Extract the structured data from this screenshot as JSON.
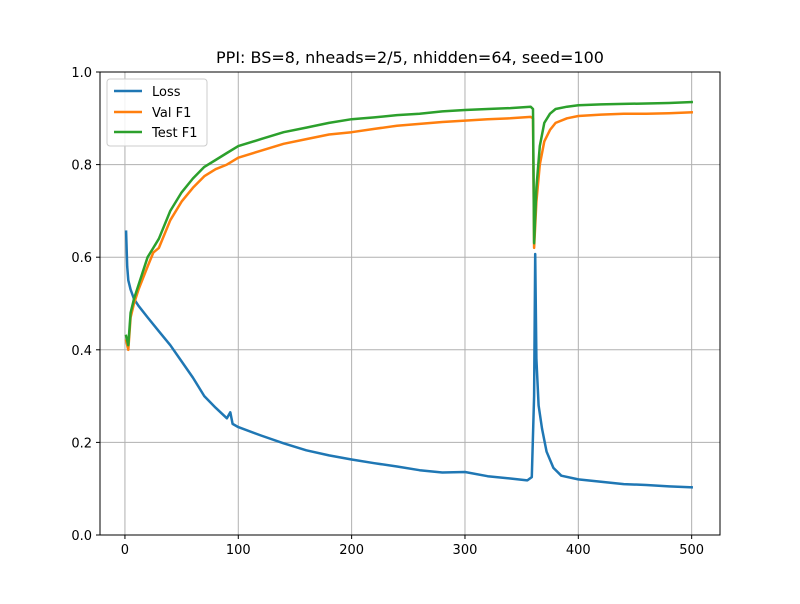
{
  "chart_data": {
    "type": "line",
    "title": "PPI: BS=8, nheads=2/5, nhidden=64, seed=100",
    "xlabel": "",
    "ylabel": "",
    "xlim": [
      -22,
      525
    ],
    "ylim": [
      0,
      1
    ],
    "xticks": [
      0,
      100,
      200,
      300,
      400,
      500
    ],
    "yticks": [
      0.0,
      0.2,
      0.4,
      0.6,
      0.8,
      1.0
    ],
    "xtick_labels": [
      "0",
      "100",
      "200",
      "300",
      "400",
      "500"
    ],
    "ytick_labels": [
      "0.0",
      "0.2",
      "0.4",
      "0.6",
      "0.8",
      "1.0"
    ],
    "grid": true,
    "legend_position": "top-left",
    "series": [
      {
        "name": "Loss",
        "color": "#1f77b4",
        "points": [
          [
            1,
            0.655
          ],
          [
            2,
            0.58
          ],
          [
            3,
            0.55
          ],
          [
            5,
            0.53
          ],
          [
            8,
            0.51
          ],
          [
            12,
            0.495
          ],
          [
            20,
            0.47
          ],
          [
            30,
            0.44
          ],
          [
            40,
            0.41
          ],
          [
            50,
            0.375
          ],
          [
            60,
            0.34
          ],
          [
            70,
            0.3
          ],
          [
            80,
            0.275
          ],
          [
            90,
            0.252
          ],
          [
            93,
            0.265
          ],
          [
            95,
            0.24
          ],
          [
            100,
            0.233
          ],
          [
            120,
            0.215
          ],
          [
            140,
            0.198
          ],
          [
            160,
            0.183
          ],
          [
            180,
            0.172
          ],
          [
            200,
            0.163
          ],
          [
            220,
            0.155
          ],
          [
            240,
            0.148
          ],
          [
            260,
            0.14
          ],
          [
            280,
            0.135
          ],
          [
            300,
            0.136
          ],
          [
            320,
            0.127
          ],
          [
            340,
            0.122
          ],
          [
            355,
            0.118
          ],
          [
            359,
            0.125
          ],
          [
            361,
            0.3
          ],
          [
            362,
            0.607
          ],
          [
            363,
            0.38
          ],
          [
            365,
            0.28
          ],
          [
            368,
            0.23
          ],
          [
            372,
            0.18
          ],
          [
            378,
            0.145
          ],
          [
            385,
            0.128
          ],
          [
            400,
            0.12
          ],
          [
            420,
            0.115
          ],
          [
            440,
            0.11
          ],
          [
            460,
            0.108
          ],
          [
            480,
            0.105
          ],
          [
            500,
            0.103
          ]
        ]
      },
      {
        "name": "Val F1",
        "color": "#ff7f0e",
        "points": [
          [
            1,
            0.42
          ],
          [
            3,
            0.4
          ],
          [
            5,
            0.47
          ],
          [
            8,
            0.5
          ],
          [
            12,
            0.53
          ],
          [
            20,
            0.58
          ],
          [
            25,
            0.61
          ],
          [
            30,
            0.62
          ],
          [
            40,
            0.68
          ],
          [
            50,
            0.72
          ],
          [
            60,
            0.75
          ],
          [
            70,
            0.775
          ],
          [
            80,
            0.79
          ],
          [
            90,
            0.8
          ],
          [
            100,
            0.815
          ],
          [
            120,
            0.83
          ],
          [
            140,
            0.845
          ],
          [
            160,
            0.855
          ],
          [
            180,
            0.865
          ],
          [
            200,
            0.87
          ],
          [
            220,
            0.877
          ],
          [
            240,
            0.884
          ],
          [
            260,
            0.888
          ],
          [
            280,
            0.892
          ],
          [
            300,
            0.895
          ],
          [
            320,
            0.898
          ],
          [
            340,
            0.9
          ],
          [
            358,
            0.903
          ],
          [
            360,
            0.9
          ],
          [
            361,
            0.62
          ],
          [
            363,
            0.72
          ],
          [
            366,
            0.8
          ],
          [
            370,
            0.85
          ],
          [
            375,
            0.875
          ],
          [
            380,
            0.89
          ],
          [
            390,
            0.9
          ],
          [
            400,
            0.905
          ],
          [
            420,
            0.908
          ],
          [
            440,
            0.91
          ],
          [
            460,
            0.91
          ],
          [
            480,
            0.911
          ],
          [
            500,
            0.913
          ]
        ]
      },
      {
        "name": "Test F1",
        "color": "#2ca02c",
        "points": [
          [
            1,
            0.43
          ],
          [
            3,
            0.41
          ],
          [
            5,
            0.48
          ],
          [
            8,
            0.51
          ],
          [
            12,
            0.54
          ],
          [
            20,
            0.6
          ],
          [
            25,
            0.62
          ],
          [
            30,
            0.64
          ],
          [
            40,
            0.7
          ],
          [
            50,
            0.74
          ],
          [
            60,
            0.77
          ],
          [
            70,
            0.795
          ],
          [
            80,
            0.81
          ],
          [
            90,
            0.825
          ],
          [
            100,
            0.84
          ],
          [
            120,
            0.855
          ],
          [
            140,
            0.87
          ],
          [
            160,
            0.88
          ],
          [
            180,
            0.89
          ],
          [
            200,
            0.898
          ],
          [
            220,
            0.902
          ],
          [
            240,
            0.907
          ],
          [
            260,
            0.91
          ],
          [
            280,
            0.915
          ],
          [
            300,
            0.918
          ],
          [
            320,
            0.92
          ],
          [
            340,
            0.922
          ],
          [
            358,
            0.925
          ],
          [
            360,
            0.92
          ],
          [
            361,
            0.63
          ],
          [
            363,
            0.75
          ],
          [
            366,
            0.84
          ],
          [
            370,
            0.89
          ],
          [
            375,
            0.91
          ],
          [
            380,
            0.92
          ],
          [
            390,
            0.925
          ],
          [
            400,
            0.928
          ],
          [
            420,
            0.93
          ],
          [
            440,
            0.931
          ],
          [
            460,
            0.932
          ],
          [
            480,
            0.933
          ],
          [
            500,
            0.935
          ]
        ]
      }
    ]
  }
}
